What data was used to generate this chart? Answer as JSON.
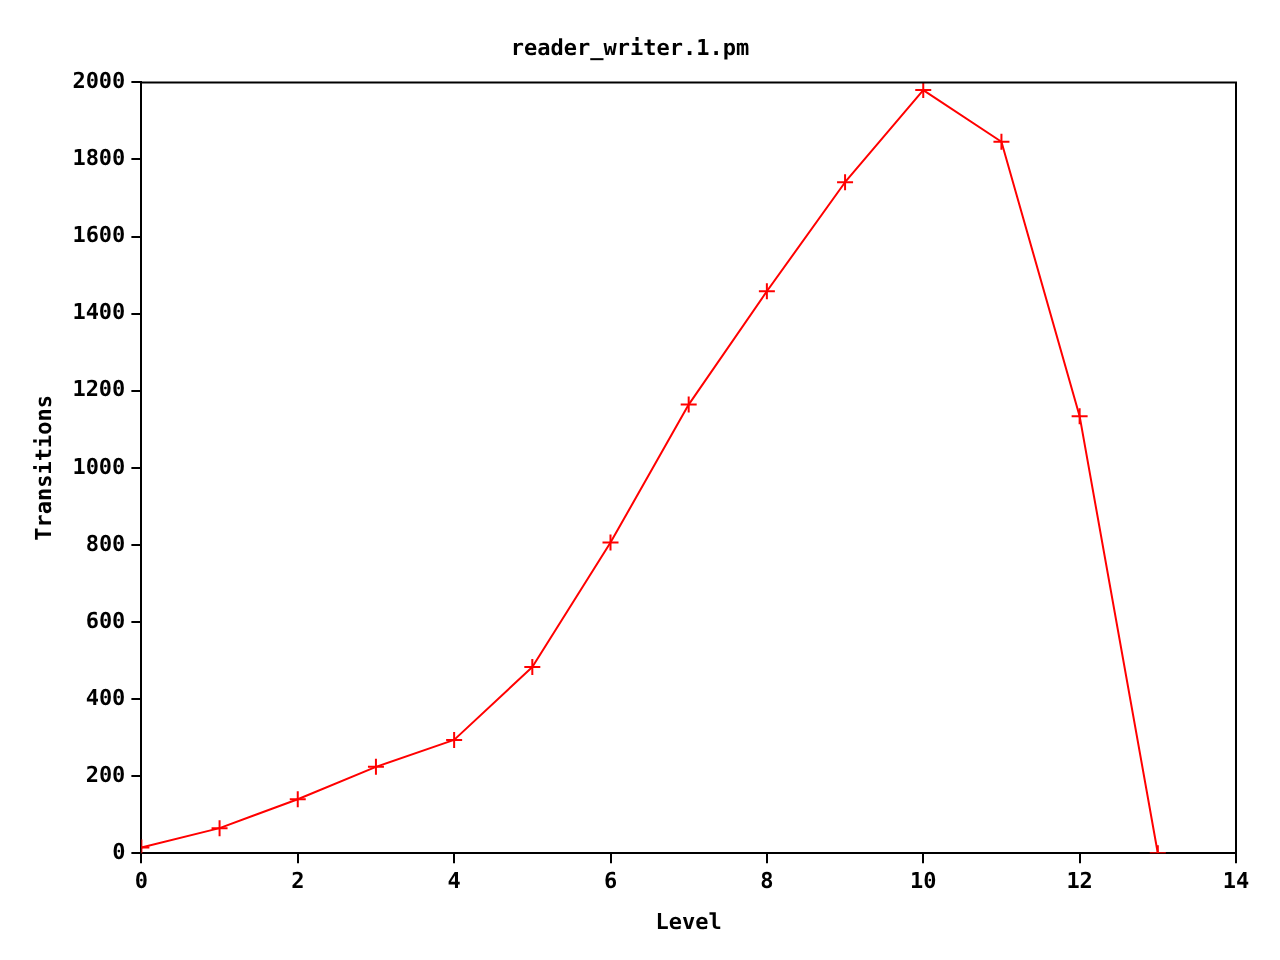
{
  "chart_data": {
    "type": "line",
    "title": "reader_writer.1.pm",
    "xlabel": "Level",
    "ylabel": "Transitions",
    "x": [
      0,
      1,
      2,
      3,
      4,
      5,
      6,
      7,
      8,
      9,
      10,
      11,
      12,
      13
    ],
    "series": [
      {
        "color": "#ff0000",
        "values": [
          15,
          65,
          140,
          224,
          294,
          483,
          806,
          1164,
          1458,
          1741,
          1980,
          1846,
          1134,
          0
        ]
      }
    ],
    "xlim": [
      0,
      14
    ],
    "xticks": [
      0,
      2,
      4,
      6,
      8,
      10,
      12,
      14
    ],
    "ylim": [
      0,
      2000
    ],
    "yticks": [
      0,
      200,
      400,
      600,
      800,
      1000,
      1200,
      1400,
      1600,
      1800,
      2000
    ],
    "grid": false,
    "legend": false,
    "marker": "cross",
    "line_style": "solid"
  }
}
